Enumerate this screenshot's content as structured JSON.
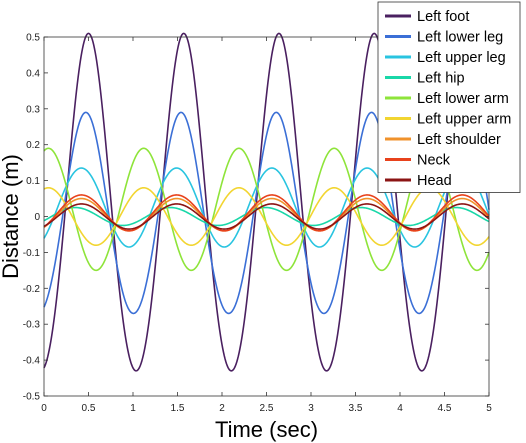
{
  "chart_data": {
    "type": "line",
    "title": "",
    "xlabel": "Time (sec)",
    "ylabel": "Distance (m)",
    "xlim": [
      0,
      5
    ],
    "ylim": [
      -0.5,
      0.5
    ],
    "xticks": [
      0,
      0.5,
      1,
      1.5,
      2,
      2.5,
      3,
      3.5,
      4,
      4.5,
      5
    ],
    "xtick_labels": [
      "0",
      "0.5",
      "1",
      "1.5",
      "2",
      "2.5",
      "3",
      "3.5",
      "4",
      "4.5",
      "5"
    ],
    "yticks": [
      -0.5,
      -0.4,
      -0.3,
      -0.2,
      -0.1,
      0,
      0.1,
      0.2,
      0.3,
      0.4,
      0.5
    ],
    "ytick_labels": [
      "-0.5",
      "-0.4",
      "-0.3",
      "-0.2",
      "-0.1",
      "0",
      "0.1",
      "0.2",
      "0.3",
      "0.4",
      "0.5"
    ],
    "grid": false,
    "legend_position": "top-right",
    "period": 1.07,
    "series": [
      {
        "name": "Left foot",
        "color": "#4a2060",
        "amplitude": 0.47,
        "offset": 0.02,
        "peak_time": 0.5,
        "harmonic2": 0.02
      },
      {
        "name": "Left lower leg",
        "color": "#3b6fd6",
        "amplitude": 0.28,
        "offset": 0.0,
        "peak_time": 0.47,
        "harmonic2": 0.01
      },
      {
        "name": "Left upper leg",
        "color": "#29c4e0",
        "amplitude": 0.11,
        "offset": 0.025,
        "peak_time": 0.42,
        "harmonic2": 0.0
      },
      {
        "name": "Left hip",
        "color": "#19d7a8",
        "amplitude": 0.025,
        "offset": 0.0,
        "peak_time": 0.35,
        "harmonic2": 0.0
      },
      {
        "name": "Left lower arm",
        "color": "#8ee43a",
        "amplitude": 0.17,
        "offset": 0.02,
        "peak_time": 0.05,
        "harmonic2": 0.0
      },
      {
        "name": "Left upper arm",
        "color": "#f2d531",
        "amplitude": 0.08,
        "offset": 0.0,
        "peak_time": 0.05,
        "harmonic2": 0.0
      },
      {
        "name": "Left shoulder",
        "color": "#f0922b",
        "amplitude": 0.045,
        "offset": 0.005,
        "peak_time": 0.42,
        "harmonic2": 0.0
      },
      {
        "name": "Neck",
        "color": "#e8421c",
        "amplitude": 0.05,
        "offset": 0.01,
        "peak_time": 0.42,
        "harmonic2": 0.0
      },
      {
        "name": "Head",
        "color": "#8b1414",
        "amplitude": 0.035,
        "offset": 0.0,
        "peak_time": 0.42,
        "harmonic2": 0.0
      }
    ]
  }
}
